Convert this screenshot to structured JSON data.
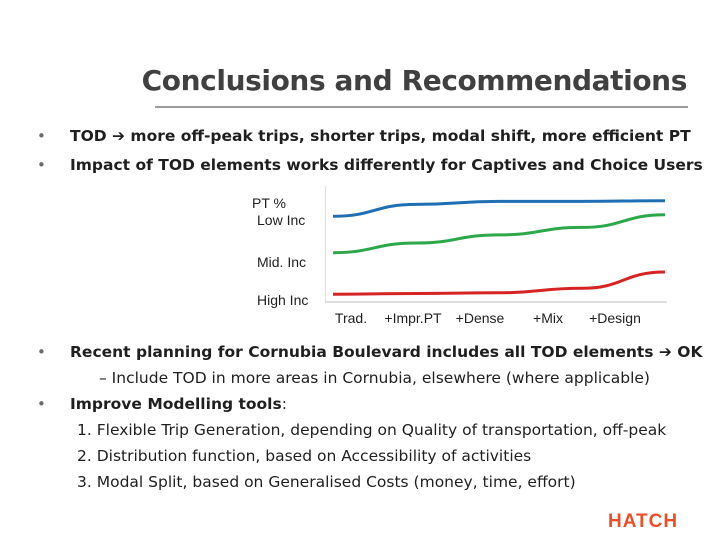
{
  "slide": {
    "title": "Conclusions and Recommendations",
    "bullets_top": [
      {
        "pre": "TOD ",
        "post": " more off-peak trips, shorter trips, modal shift, more efficient PT"
      },
      {
        "text": "Impact of TOD elements works differently for Captives and Choice Users"
      }
    ],
    "bullets_bottom": [
      {
        "pre": "Recent planning for Cornubia Boulevard includes all TOD elements ",
        "post": " OK"
      },
      {
        "sub": "– Include TOD in more areas in Cornubia, elsewhere (where applicable)"
      },
      {
        "bold": "Improve Modelling tools",
        "rest": ":"
      }
    ],
    "numbered": [
      "1. Flexible Trip Generation, depending on Quality of transportation, off-peak",
      "2. Distribution function, based on Accessibility of activities",
      "3. Modal Split, based on Generalised Costs (money, time, effort)"
    ],
    "logo": "HATCH"
  },
  "chart_data": {
    "type": "line",
    "ylabel": "PT %",
    "series_labels": [
      "Low Inc",
      "Mid. Inc",
      "High Inc"
    ],
    "categories": [
      "Trad.",
      "+Impr.PT",
      "+Dense",
      "+Mix",
      "+Design"
    ],
    "series": [
      {
        "name": "Low Inc",
        "color": "#1f6fb5",
        "values": [
          0.7,
          0.86,
          0.9,
          0.9,
          0.91
        ]
      },
      {
        "name": "Mid. Inc",
        "color": "#2ca84a",
        "values": [
          0.21,
          0.34,
          0.45,
          0.55,
          0.72
        ]
      },
      {
        "name": "High Inc",
        "color": "#d62424",
        "values": [
          -0.35,
          -0.34,
          -0.33,
          -0.27,
          -0.05
        ]
      }
    ],
    "ylim": [
      -0.4,
      1.0
    ]
  }
}
